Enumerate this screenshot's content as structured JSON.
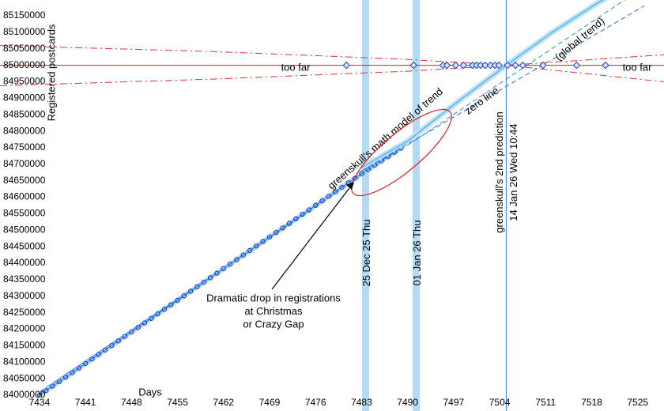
{
  "chart_data": {
    "type": "line",
    "x_label": "Days",
    "y_label": "Registered postcards",
    "xlim": [
      7428,
      7529
    ],
    "ylim": [
      83952000,
      85198000
    ],
    "xticks": [
      7434,
      7441,
      7448,
      7455,
      7462,
      7469,
      7476,
      7483,
      7490,
      7497,
      7504,
      7511,
      7518,
      7525
    ],
    "yticks": [
      84000000,
      84050000,
      84100000,
      84150000,
      84200000,
      84250000,
      84300000,
      84350000,
      84400000,
      84450000,
      84500000,
      84550000,
      84600000,
      84650000,
      84700000,
      84750000,
      84800000,
      84850000,
      84900000,
      84950000,
      85000000,
      85050000,
      85100000,
      85150000
    ],
    "grid": true,
    "series": [
      {
        "color": "#1a3fd6",
        "style": "points",
        "x": [
          7434,
          7435,
          7436,
          7437,
          7438,
          7439,
          7440,
          7441,
          7442,
          7443,
          7444,
          7445,
          7446,
          7447,
          7448,
          7449,
          7450,
          7451,
          7452,
          7453,
          7454,
          7455,
          7456,
          7457,
          7458,
          7459,
          7460,
          7461,
          7462,
          7463,
          7464,
          7465,
          7466,
          7467,
          7468,
          7469,
          7470,
          7471,
          7472,
          7473,
          7474,
          7475,
          7476,
          7477,
          7478,
          7479,
          7480,
          7481,
          7482,
          7483,
          7484,
          7485,
          7486,
          7487,
          7488,
          7489
        ],
        "values": [
          84000000,
          84013700,
          84027400,
          84041100,
          84054800,
          84068500,
          84082200,
          84095900,
          84109600,
          84123300,
          84137000,
          84150700,
          84164400,
          84178100,
          84191800,
          84205500,
          84219200,
          84232900,
          84246600,
          84260300,
          84274000,
          84287700,
          84301400,
          84315100,
          84328800,
          84342500,
          84356200,
          84369900,
          84383600,
          84397300,
          84411000,
          84424700,
          84438400,
          84452100,
          84465800,
          84479500,
          84493200,
          84506900,
          84520600,
          84534300,
          84548000,
          84561700,
          84575400,
          84589100,
          84602800,
          84616500,
          84630200,
          84643900,
          84657600,
          84671300,
          84684300,
          84697300,
          84710300,
          84723300,
          84736300,
          84749300
        ]
      },
      {
        "color": "#5ab4f0",
        "style": "band",
        "x": [
          7483,
          7490,
          7497,
          7505,
          7512,
          7519,
          7526
        ],
        "values": [
          84690000,
          84770000,
          84880000,
          85000000,
          85100000,
          85190000,
          85270000
        ]
      },
      {
        "color": "#2a8ae0",
        "style": "dashed",
        "x": [
          7434,
          7526
        ],
        "values": [
          84010000,
          85238000
        ]
      },
      {
        "color": "#2a6ad8",
        "style": "dashed",
        "x": [
          7483,
          7526
        ],
        "values": [
          84680000,
          85180000
        ]
      },
      {
        "color": "#e03030",
        "style": "dashed",
        "x": [
          7428,
          7460,
          7490,
          7505,
          7529
        ],
        "values": [
          85060000,
          85042000,
          85018000,
          85000000,
          84950000
        ]
      },
      {
        "color": "#e03030",
        "style": "dashed",
        "x": [
          7428,
          7460,
          7490,
          7505,
          7529
        ],
        "values": [
          84938000,
          84958000,
          84982000,
          85000000,
          85032000
        ]
      }
    ],
    "target_line": 85000000,
    "target_line_color": "#d02020",
    "target_points": {
      "color": "#1a3fd6",
      "x": [
        7480.7,
        7490.9,
        7495.4,
        7496,
        7497.3,
        7498.5,
        7499.9,
        7500.5,
        7501.1,
        7501.8,
        7502.6,
        7503.3,
        7503.9,
        7505.2,
        7506.4,
        7507.5,
        7510.6,
        7515.7,
        7520.1
      ],
      "values": [
        85000000,
        85000000,
        85000000,
        85000000,
        85000000,
        85000000,
        85000000,
        85000000,
        85000000,
        85000000,
        85000000,
        85000000,
        85000000,
        85000000,
        85000000,
        85000000,
        85000000,
        85000000,
        85000000
      ]
    },
    "bands": [
      {
        "x": 7483.6,
        "label": "25 Dec 25 Thu"
      },
      {
        "x": 7491.3,
        "label": "01 Jan 26 Thu"
      }
    ],
    "prediction": {
      "x": 7505,
      "labels": [
        "greenskull's 2nd prediction",
        "14 Jan 26 Wed 10:44"
      ]
    },
    "annotations": {
      "too_far_left": "too far",
      "too_far_right": "too far",
      "model": "greenskull's math model of trend",
      "global_trend": "(global trend)",
      "zero_line": "zero line",
      "drop": [
        "Dramatic drop in registrations",
        "at Christmas",
        "or Crazy Gap"
      ]
    }
  }
}
